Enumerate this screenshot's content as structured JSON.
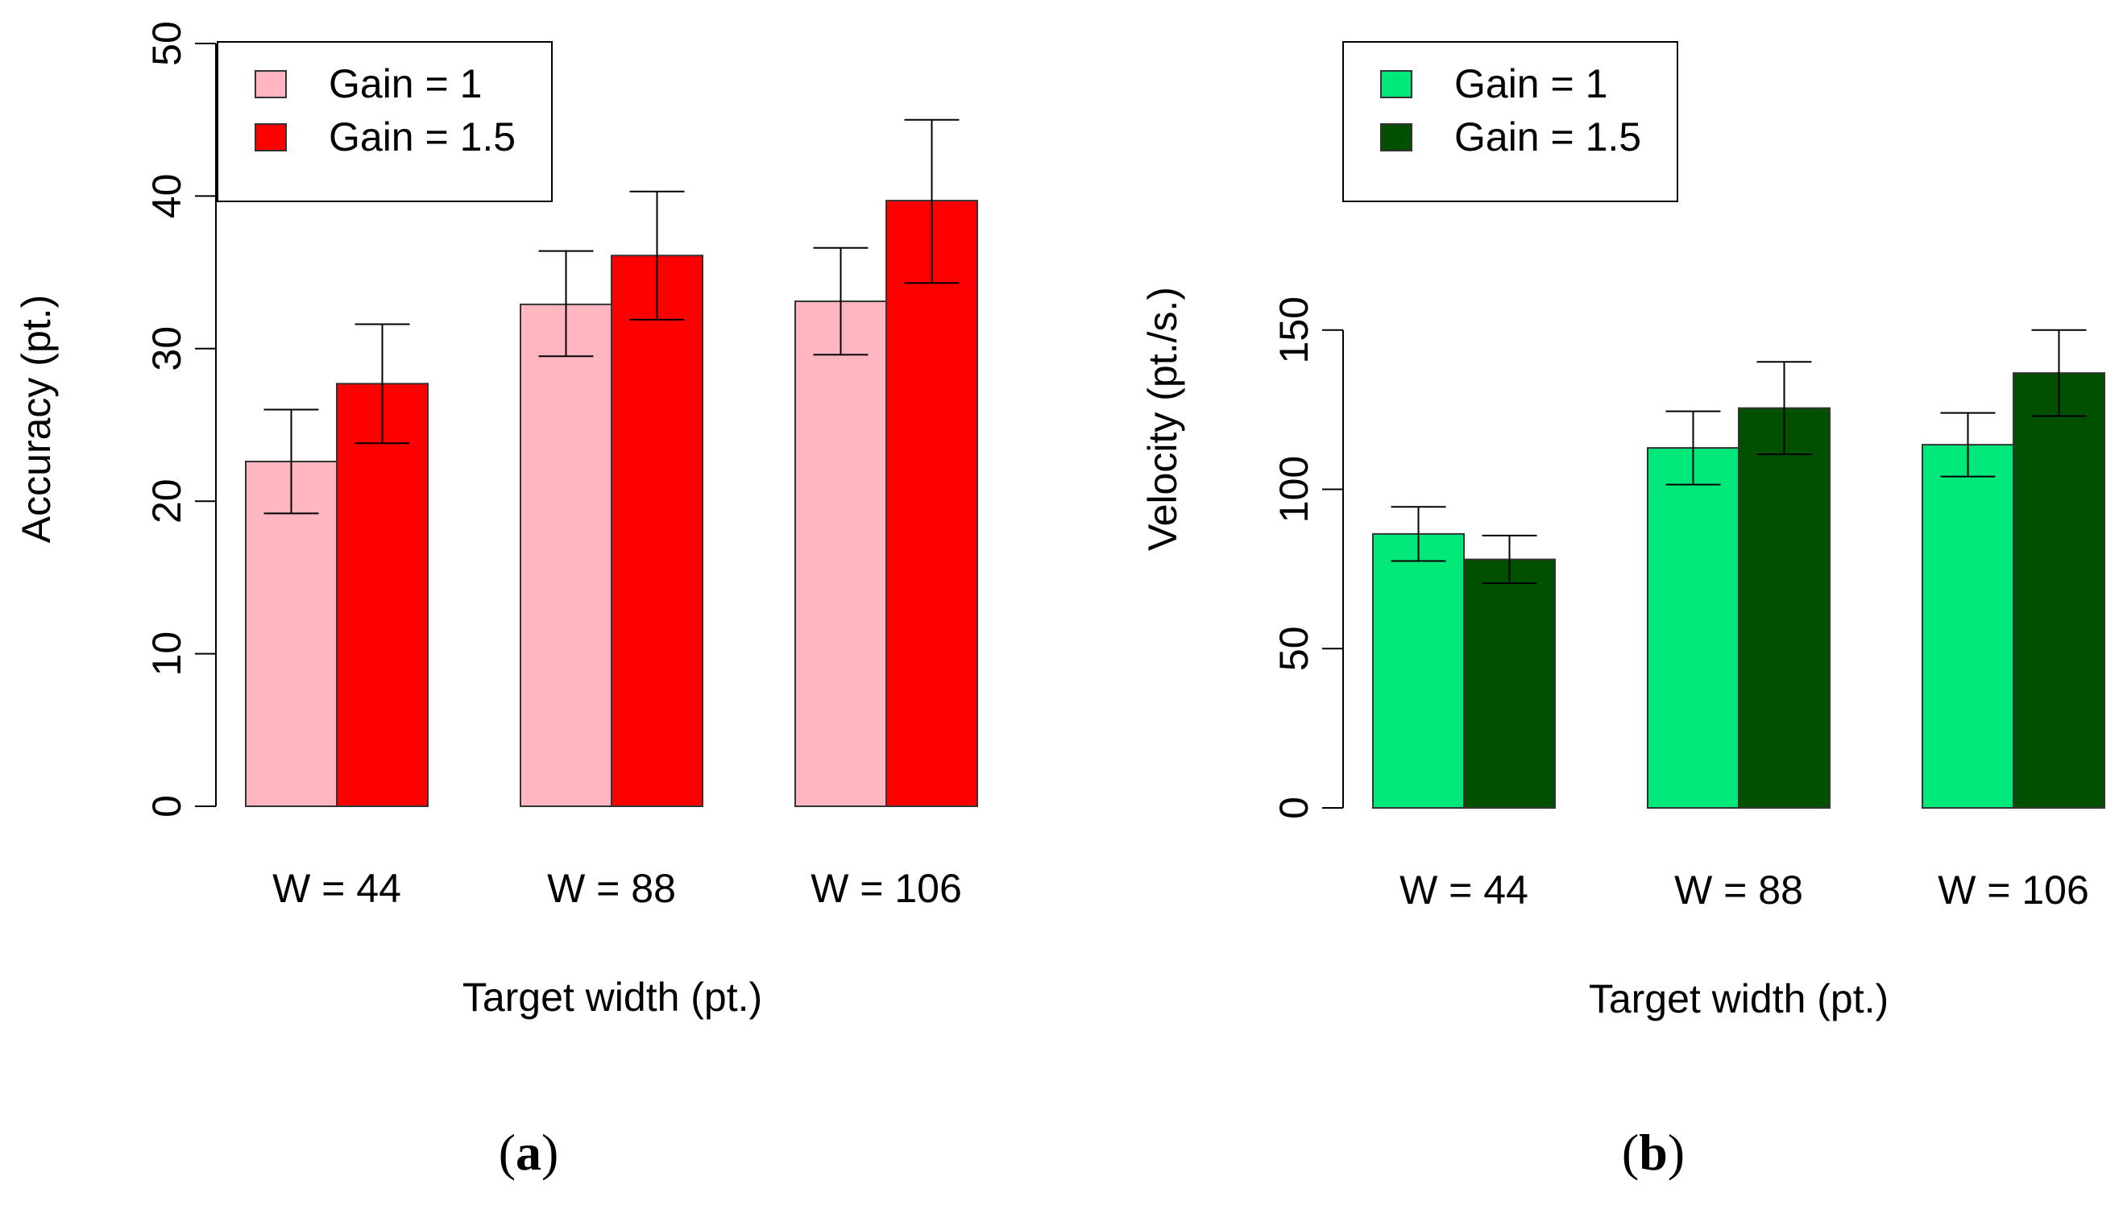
{
  "chart_data": [
    {
      "type": "bar",
      "panel_label": {
        "open": "(",
        "letter": "a",
        "close": ")"
      },
      "categories": [
        "W = 44",
        "W = 88",
        "W = 106"
      ],
      "xlabel": "Target width (pt.)",
      "ylabel": "Accuracy (pt.)",
      "ylim": [
        0,
        50
      ],
      "yticks": [
        0,
        10,
        20,
        30,
        40,
        50
      ],
      "grid": false,
      "legend": {
        "position": "top-left",
        "entries": [
          "Gain = 1",
          "Gain = 1.5"
        ]
      },
      "series": [
        {
          "name": "Gain = 1",
          "color": "#ffb6c1",
          "values": [
            22.6,
            32.9,
            33.1
          ],
          "err_low": [
            19.2,
            29.5,
            29.6
          ],
          "err_high": [
            26.0,
            36.4,
            36.6
          ]
        },
        {
          "name": "Gain = 1.5",
          "color": "#ff0000",
          "values": [
            27.7,
            36.1,
            39.7
          ],
          "err_low": [
            23.8,
            31.9,
            34.3
          ],
          "err_high": [
            31.6,
            40.3,
            45.0
          ]
        }
      ]
    },
    {
      "type": "bar",
      "panel_label": {
        "open": "(",
        "letter": "b",
        "close": ")"
      },
      "categories": [
        "W = 44",
        "W = 88",
        "W = 106"
      ],
      "xlabel": "Target width (pt.)",
      "ylabel": "Velocity (pt./s.)",
      "ylim": [
        0,
        160
      ],
      "yticks": [
        0,
        50,
        100,
        150
      ],
      "grid": false,
      "legend": {
        "position": "top-left",
        "entries": [
          "Gain = 1",
          "Gain = 1.5"
        ]
      },
      "series": [
        {
          "name": "Gain = 1",
          "color": "#00e87a",
          "values": [
            86,
            113,
            114
          ],
          "err_low": [
            77.5,
            101.5,
            104
          ],
          "err_high": [
            94.5,
            124.5,
            124
          ]
        },
        {
          "name": "Gain = 1.5",
          "color": "#005000",
          "values": [
            78,
            125.5,
            136.5
          ],
          "err_low": [
            70.5,
            111,
            123
          ],
          "err_high": [
            85.5,
            140,
            150
          ]
        }
      ]
    }
  ]
}
